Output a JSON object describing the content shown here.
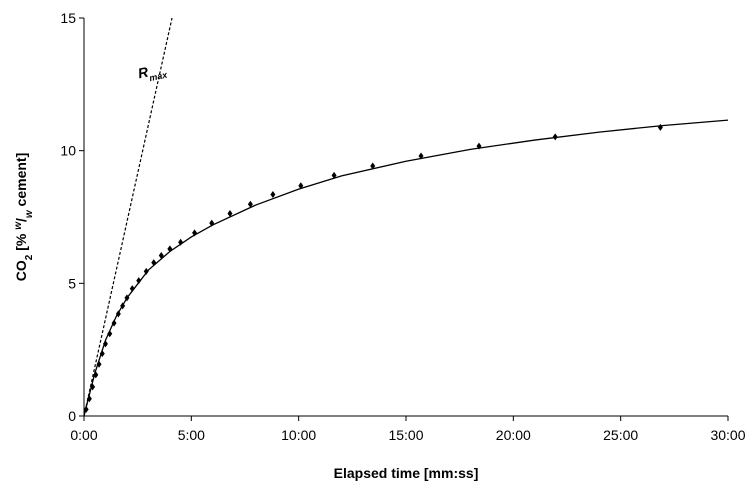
{
  "chart_data": {
    "type": "scatter",
    "xlabel": "Elapsed time [mm:ss]",
    "ylabel_parts": [
      "CO",
      "2",
      " [% ",
      "w",
      "/",
      "w",
      " cement]"
    ],
    "annotation": {
      "text": "R",
      "subscript": "max"
    },
    "xlim": [
      0,
      30
    ],
    "ylim": [
      0,
      15
    ],
    "xticks": [
      {
        "value": 0,
        "label": "0:00"
      },
      {
        "value": 5,
        "label": "5:00"
      },
      {
        "value": 10,
        "label": "10:00"
      },
      {
        "value": 15,
        "label": "15:00"
      },
      {
        "value": 20,
        "label": "20:00"
      },
      {
        "value": 25,
        "label": "25:00"
      },
      {
        "value": 30,
        "label": "30:00"
      }
    ],
    "yticks": [
      0,
      5,
      10,
      15
    ],
    "series": [
      {
        "kind": "points",
        "color": "#000000",
        "x": [
          0.1,
          0.25,
          0.4,
          0.55,
          0.7,
          0.85,
          1.0,
          1.2,
          1.4,
          1.6,
          1.8,
          2.0,
          2.25,
          2.55,
          2.9,
          3.25,
          3.6,
          4.0,
          4.5,
          5.15,
          5.95,
          6.8,
          7.75,
          8.8,
          10.1,
          11.65,
          13.45,
          15.7,
          18.4,
          21.95,
          26.85
        ],
        "values": [
          0.25,
          0.65,
          1.1,
          1.55,
          1.95,
          2.35,
          2.72,
          3.1,
          3.5,
          3.85,
          4.15,
          4.45,
          4.8,
          5.1,
          5.45,
          5.78,
          6.05,
          6.3,
          6.55,
          6.9,
          7.27,
          7.63,
          7.98,
          8.35,
          8.68,
          9.07,
          9.42,
          9.8,
          10.17,
          10.52,
          10.88
        ]
      },
      {
        "kind": "line",
        "color": "#000000",
        "x": [
          0,
          0.5,
          1,
          1.5,
          2,
          3,
          4,
          5,
          6,
          8,
          10,
          12,
          15,
          18,
          21,
          24,
          27,
          30
        ],
        "values": [
          0,
          1.6,
          2.85,
          3.75,
          4.45,
          5.5,
          6.2,
          6.75,
          7.2,
          7.95,
          8.55,
          9.05,
          9.6,
          10.05,
          10.4,
          10.7,
          10.95,
          11.15
        ]
      },
      {
        "kind": "dashed",
        "color": "#000000",
        "x": [
          0,
          4.1
        ],
        "values": [
          0,
          15
        ]
      }
    ]
  }
}
